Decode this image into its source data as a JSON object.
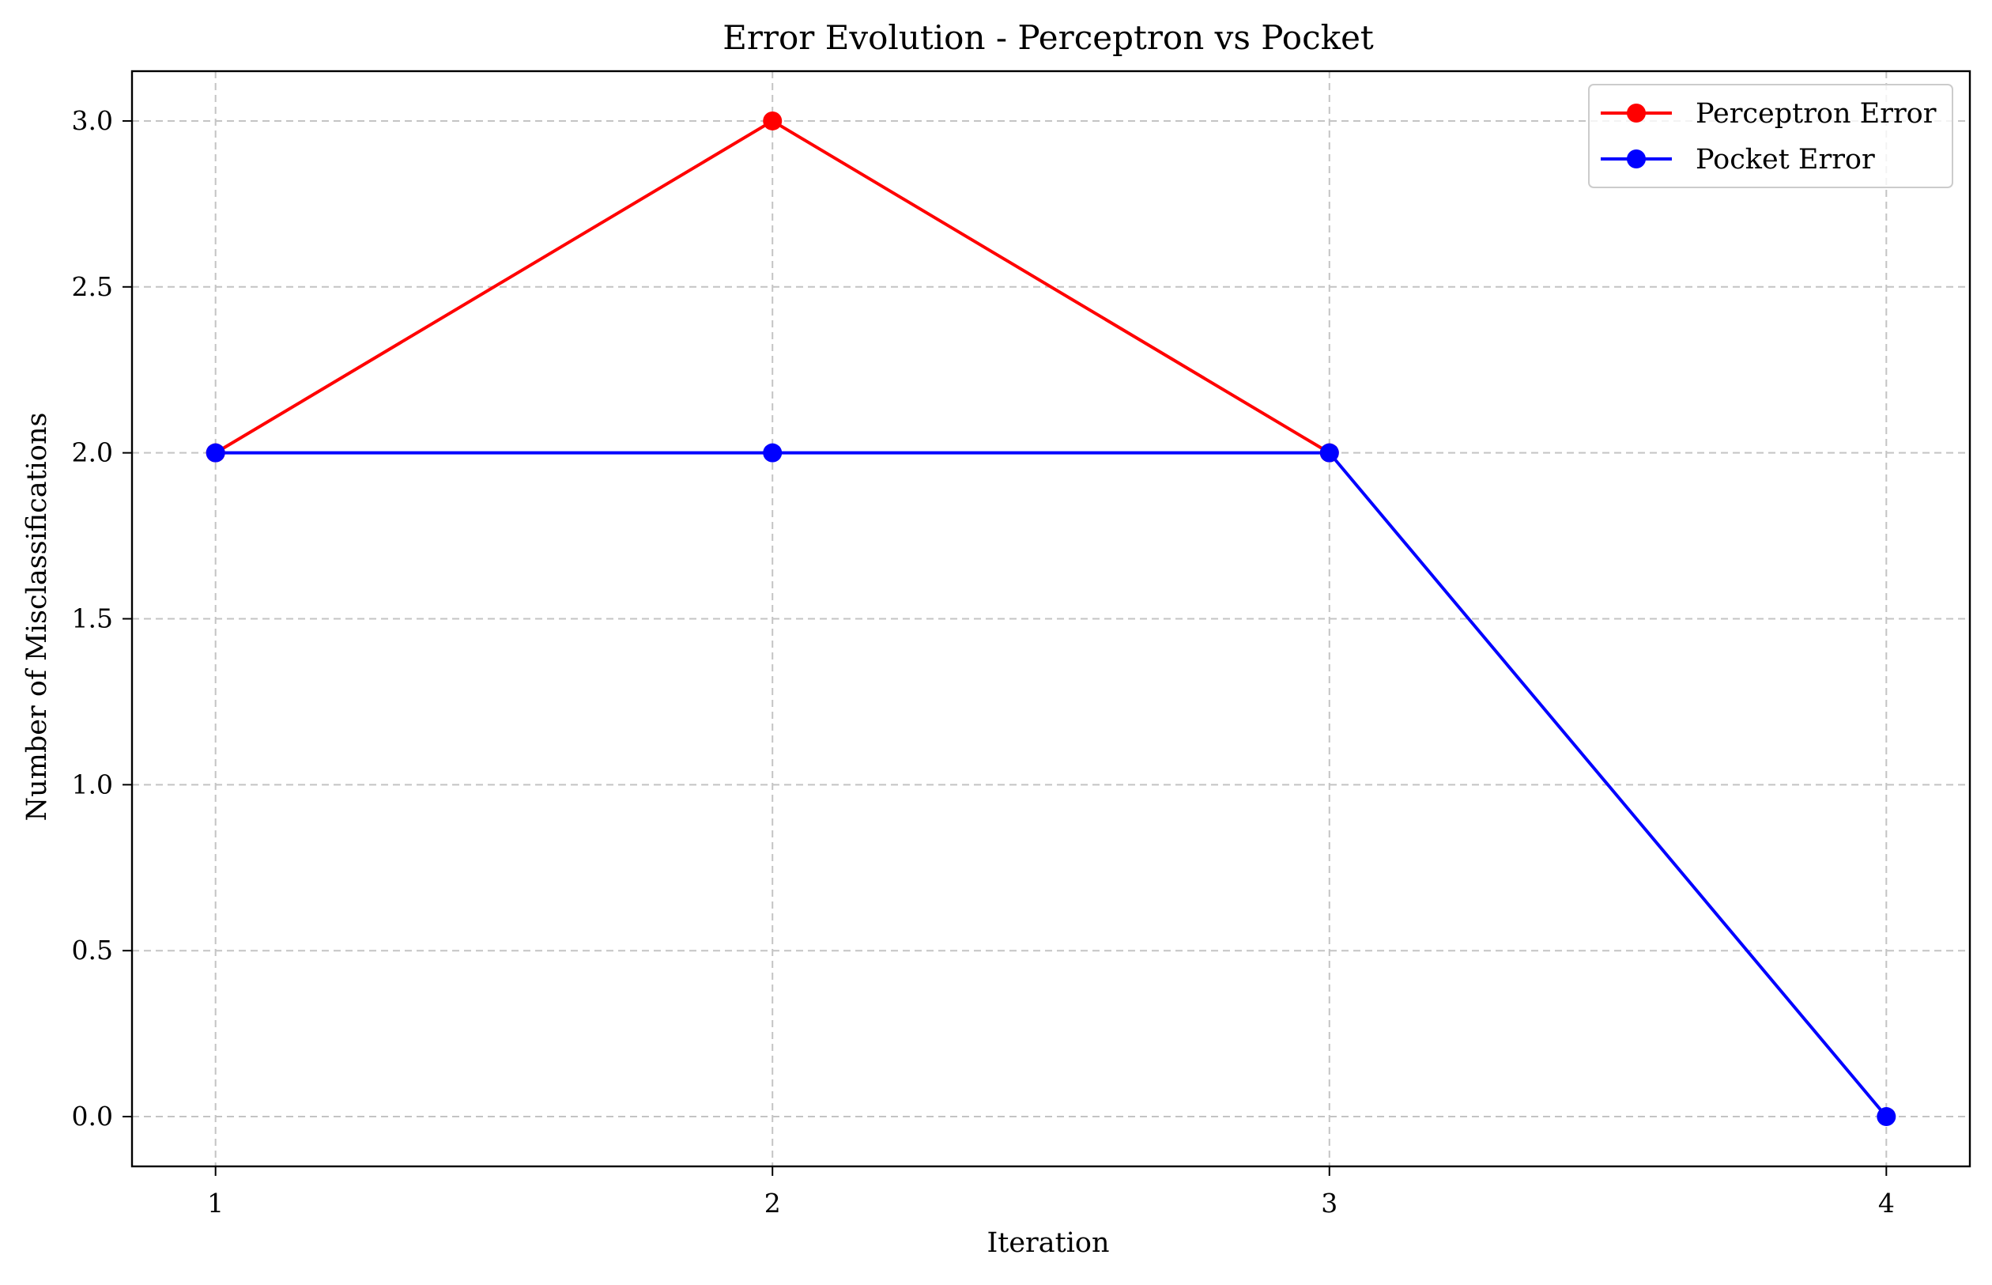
{
  "chart_data": {
    "type": "line",
    "title": "Error Evolution - Perceptron vs Pocket",
    "xlabel": "Iteration",
    "ylabel": "Number of Misclassifications",
    "x": [
      1,
      2,
      3,
      4
    ],
    "xticks": [
      "1",
      "2",
      "3",
      "4"
    ],
    "yticks": [
      "0.0",
      "0.5",
      "1.0",
      "1.5",
      "2.0",
      "2.5",
      "3.0"
    ],
    "xlim": [
      0.85,
      4.15
    ],
    "ylim": [
      -0.15,
      3.15
    ],
    "grid": true,
    "legend_position": "top-right",
    "series": [
      {
        "name": "Perceptron Error",
        "color": "#ff0000",
        "marker": "circle",
        "x": [
          1,
          2,
          3
        ],
        "values": [
          2,
          3,
          2
        ]
      },
      {
        "name": "Pocket Error",
        "color": "#0000ff",
        "marker": "circle",
        "x": [
          1,
          2,
          3,
          4
        ],
        "values": [
          2,
          2,
          2,
          0
        ]
      }
    ]
  }
}
